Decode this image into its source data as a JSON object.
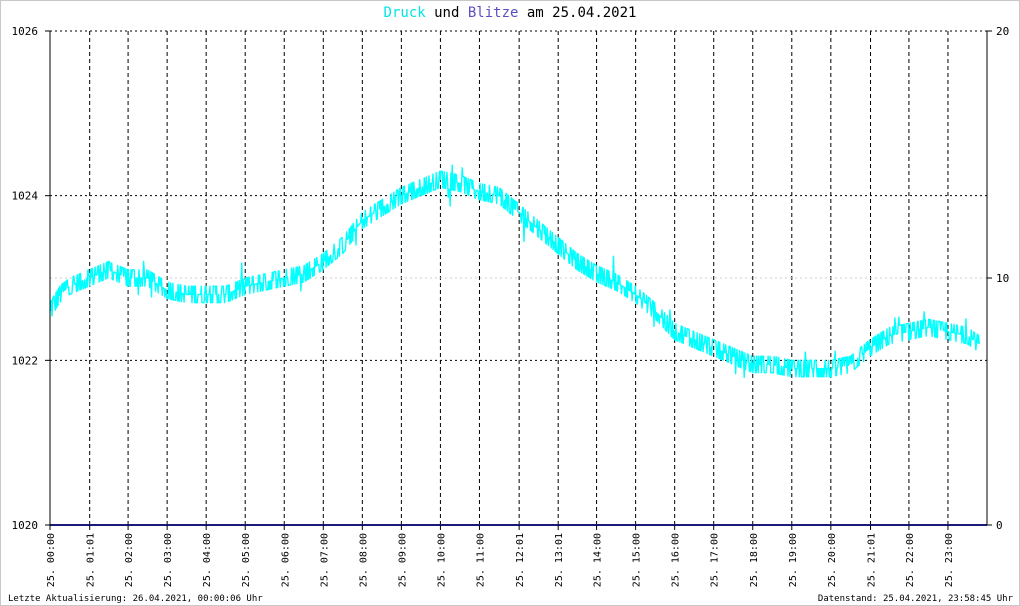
{
  "title": {
    "series1": "Druck",
    "und": "und",
    "series2": "Blitze",
    "date_prefix": "am",
    "date": "25.04.2021"
  },
  "footer": {
    "left": "Letzte Aktualisierung: 26.04.2021, 00:00:06 Uhr",
    "right": "Datenstand: 25.04.2021, 23:58:45 Uhr"
  },
  "colors": {
    "druck": "#00ffff",
    "blitze": "#1a1a7a",
    "grid": "#000000",
    "background": "#ffffff"
  },
  "chart_data": {
    "type": "line",
    "y_left": {
      "min": 1020,
      "max": 1026,
      "ticks": [
        "1020",
        "1022",
        "1024",
        "1026"
      ]
    },
    "y_right": {
      "min": 0,
      "max": 20,
      "ticks": [
        "0",
        "10",
        "20"
      ]
    },
    "x_labels": [
      "25. 00:00",
      "25. 01:01",
      "25. 02:00",
      "25. 03:00",
      "25. 04:00",
      "25. 05:00",
      "25. 06:00",
      "25. 07:00",
      "25. 08:00",
      "25. 09:00",
      "25. 10:00",
      "25. 11:00",
      "25. 12:01",
      "25. 13:01",
      "25. 14:00",
      "25. 15:00",
      "25. 16:00",
      "25. 17:00",
      "25. 18:00",
      "25. 19:00",
      "25. 20:00",
      "25. 21:01",
      "25. 22:00",
      "25. 23:00"
    ],
    "x_range_hours": [
      0,
      24
    ],
    "grid": true,
    "series": [
      {
        "name": "Druck",
        "axis": "left",
        "x_hours": [
          0,
          0.25,
          0.5,
          1.0,
          1.5,
          2.0,
          2.5,
          3.0,
          3.5,
          4.0,
          4.5,
          5.0,
          5.5,
          6.0,
          6.5,
          7.0,
          7.5,
          8.0,
          8.5,
          9.0,
          9.5,
          10.0,
          10.5,
          11.0,
          11.5,
          12.0,
          12.5,
          13.0,
          13.5,
          14.0,
          14.5,
          15.0,
          15.5,
          16.0,
          16.5,
          17.0,
          17.5,
          18.0,
          18.5,
          19.0,
          19.5,
          20.0,
          20.5,
          21.0,
          21.5,
          22.0,
          22.5,
          23.0,
          23.5,
          23.8
        ],
        "values": [
          1022.6,
          1022.8,
          1022.9,
          1023.0,
          1023.1,
          1023.0,
          1023.0,
          1022.85,
          1022.8,
          1022.8,
          1022.8,
          1022.9,
          1022.95,
          1023.0,
          1023.05,
          1023.2,
          1023.4,
          1023.7,
          1023.85,
          1024.0,
          1024.1,
          1024.2,
          1024.15,
          1024.05,
          1024.0,
          1023.8,
          1023.6,
          1023.4,
          1023.2,
          1023.05,
          1022.95,
          1022.8,
          1022.6,
          1022.35,
          1022.25,
          1022.15,
          1022.05,
          1021.95,
          1021.95,
          1021.9,
          1021.9,
          1021.9,
          1021.95,
          1022.15,
          1022.3,
          1022.35,
          1022.4,
          1022.35,
          1022.3,
          1022.2
        ]
      },
      {
        "name": "Blitze",
        "axis": "right",
        "x_hours": [
          0,
          24
        ],
        "values": [
          0,
          0
        ]
      }
    ]
  }
}
